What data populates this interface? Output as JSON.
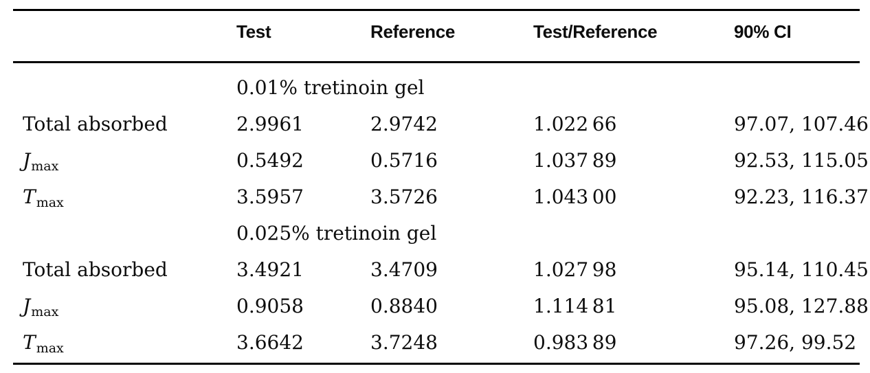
{
  "meta": {
    "background_color": "#ffffff",
    "text_color": "#0d0d0d",
    "rule_color": "#000000"
  },
  "table": {
    "columns": [
      "",
      "Test",
      "Reference",
      "Test/Reference",
      "90% CI"
    ],
    "sections": [
      {
        "group_label": "0.01% tretinoin gel",
        "rows": [
          {
            "label": "Total absorbed",
            "label_sub": "",
            "label_italic": false,
            "test": "2.9961",
            "reference": "2.9742",
            "test_reference": "1.022 66",
            "ci_90": "97.07, 107.46"
          },
          {
            "label": "J",
            "label_sub": "max",
            "label_italic": true,
            "test": "0.5492",
            "reference": "0.5716",
            "test_reference": "1.037 89",
            "ci_90": "92.53, 115.05"
          },
          {
            "label": "T",
            "label_sub": "max",
            "label_italic": true,
            "test": "3.5957",
            "reference": "3.5726",
            "test_reference": "1.043 00",
            "ci_90": "92.23, 116.37"
          }
        ]
      },
      {
        "group_label": "0.025% tretinoin gel",
        "rows": [
          {
            "label": "Total absorbed",
            "label_sub": "",
            "label_italic": false,
            "test": "3.4921",
            "reference": "3.4709",
            "test_reference": "1.027 98",
            "ci_90": "95.14, 110.45"
          },
          {
            "label": "J",
            "label_sub": "max",
            "label_italic": true,
            "test": "0.9058",
            "reference": "0.8840",
            "test_reference": "1.114 81",
            "ci_90": "95.08, 127.88"
          },
          {
            "label": "T",
            "label_sub": "max",
            "label_italic": true,
            "test": "3.6642",
            "reference": "3.7248",
            "test_reference": "0.983 89",
            "ci_90": "97.26, 99.52"
          }
        ]
      }
    ]
  }
}
